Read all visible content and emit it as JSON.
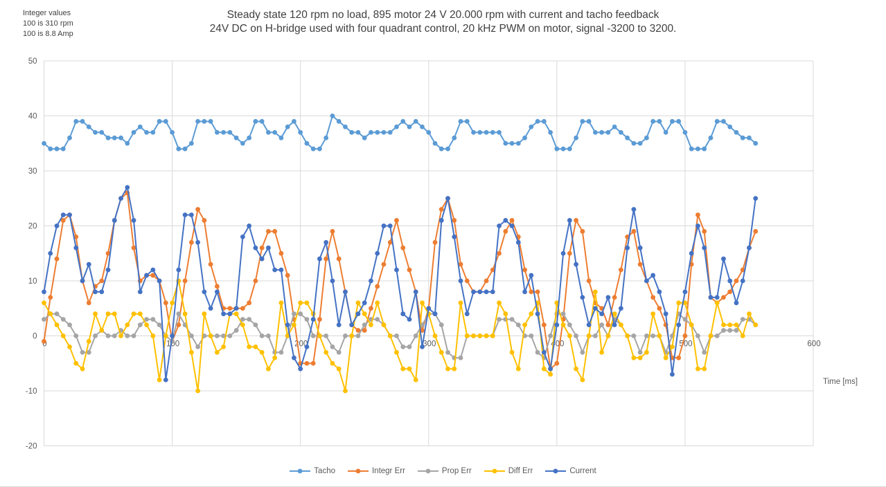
{
  "annotation": {
    "line1": "Integer values",
    "line2": "100 is 310 rpm",
    "line3": "100 is 8.8 Amp"
  },
  "title": {
    "line1": "Steady state 120 rpm no load, 895 motor 24 V 20.000 rpm with current and tacho feedback",
    "line2": "24V DC on H-bridge used with four quadrant control, 20 kHz PWM on motor, signal -3200 to 3200."
  },
  "chart_data": {
    "type": "line",
    "xlabel": "Time [ms]",
    "ylabel": "",
    "xlim": [
      0,
      600
    ],
    "ylim": [
      -20,
      50
    ],
    "x_ticks": [
      0,
      100,
      200,
      300,
      400,
      500,
      600
    ],
    "y_ticks": [
      -20,
      -10,
      0,
      10,
      20,
      30,
      40,
      50
    ],
    "grid": true,
    "legend_position": "bottom",
    "marker": "circle",
    "x_start": 0,
    "x_step": 5,
    "series": [
      {
        "name": "Tacho",
        "color": "#5B9BD5",
        "values": [
          35,
          34,
          34,
          34,
          36,
          39,
          39,
          38,
          37,
          37,
          36,
          36,
          36,
          35,
          37,
          38,
          37,
          37,
          39,
          39,
          37,
          34,
          34,
          35,
          39,
          39,
          39,
          37,
          37,
          37,
          36,
          35,
          36,
          39,
          39,
          37,
          37,
          36,
          38,
          39,
          37,
          35,
          34,
          34,
          36,
          40,
          39,
          38,
          37,
          37,
          36,
          37,
          37,
          37,
          37,
          38,
          39,
          38,
          39,
          38,
          37,
          35,
          34,
          34,
          36,
          39,
          39,
          37,
          37,
          37,
          37,
          37,
          35,
          35,
          35,
          36,
          38,
          39,
          39,
          37,
          34,
          34,
          34,
          36,
          39,
          39,
          37,
          37,
          37,
          38,
          37,
          36,
          35,
          35,
          36,
          39,
          39,
          37,
          39,
          39,
          37,
          34,
          34,
          34,
          36,
          39,
          39,
          38,
          37,
          36,
          36,
          35
        ]
      },
      {
        "name": "Integr Err",
        "color": "#ED7D31",
        "values": [
          -1,
          7,
          14,
          21,
          22,
          18,
          10,
          6,
          9,
          10,
          15,
          21,
          25,
          26,
          16,
          10,
          11,
          11,
          10,
          6,
          -1,
          2,
          10,
          17,
          23,
          21,
          13,
          9,
          5,
          5,
          5,
          5,
          6,
          10,
          16,
          19,
          19,
          15,
          11,
          3,
          -5,
          -5,
          -5,
          3,
          14,
          19,
          14,
          8,
          2,
          1,
          1,
          5,
          9,
          13,
          17,
          21,
          16,
          12,
          8,
          1,
          5,
          17,
          23,
          25,
          21,
          13,
          10,
          8,
          8,
          10,
          12,
          15,
          19,
          21,
          18,
          12,
          8,
          8,
          2,
          -6,
          -5,
          3,
          15,
          21,
          19,
          10,
          6,
          5,
          2,
          7,
          12,
          18,
          19,
          13,
          10,
          7,
          5,
          2,
          -4,
          -4,
          0,
          13,
          22,
          19,
          7,
          6,
          7,
          8,
          10,
          12,
          16,
          19
        ]
      },
      {
        "name": "Prop Err",
        "color": "#A5A5A5",
        "values": [
          3,
          4,
          4,
          3,
          2,
          0,
          -3,
          -3,
          0,
          1,
          0,
          0,
          1,
          0,
          0,
          2,
          3,
          3,
          2,
          0,
          -1,
          4,
          2,
          0,
          -2,
          0,
          0,
          0,
          0,
          0,
          1,
          3,
          3,
          2,
          0,
          0,
          -3,
          -3,
          0,
          4,
          4,
          3,
          0,
          0,
          0,
          -2,
          -3,
          0,
          0,
          0,
          2,
          3,
          3,
          2,
          0,
          0,
          -2,
          -2,
          0,
          2,
          4,
          4,
          2,
          -3,
          -4,
          -4,
          0,
          0,
          0,
          0,
          0,
          3,
          3,
          3,
          2,
          0,
          0,
          -3,
          -4,
          0,
          4,
          4,
          2,
          0,
          -3,
          0,
          0,
          2,
          0,
          3,
          2,
          0,
          0,
          -3,
          0,
          0,
          0,
          -3,
          0,
          4,
          3,
          2,
          0,
          -3,
          0,
          0,
          1,
          1,
          1,
          3,
          3,
          2
        ]
      },
      {
        "name": "Diff Err",
        "color": "#FFC000",
        "values": [
          6,
          4,
          2,
          0,
          -2,
          -5,
          -6,
          -1,
          4,
          1,
          4,
          4,
          0,
          2,
          4,
          4,
          2,
          0,
          -8,
          0,
          6,
          10,
          4,
          -3,
          -10,
          4,
          0,
          -3,
          -2,
          4,
          4,
          2,
          -2,
          -2,
          -3,
          -6,
          -4,
          6,
          0,
          2,
          6,
          6,
          4,
          0,
          -3,
          -5,
          -6,
          -10,
          0,
          6,
          4,
          2,
          6,
          2,
          0,
          -3,
          -6,
          -6,
          -8,
          6,
          4,
          0,
          -3,
          -6,
          -6,
          6,
          0,
          0,
          0,
          0,
          0,
          6,
          4,
          -3,
          -6,
          2,
          4,
          6,
          -6,
          -7,
          6,
          2,
          0,
          -6,
          -8,
          0,
          8,
          -3,
          0,
          4,
          2,
          0,
          -4,
          -4,
          -3,
          4,
          0,
          -4,
          -2,
          6,
          6,
          2,
          -6,
          -6,
          0,
          6,
          2,
          2,
          2,
          0,
          4,
          2
        ]
      },
      {
        "name": "Current",
        "color": "#4472C4",
        "values": [
          8,
          15,
          20,
          22,
          22,
          16,
          10,
          13,
          8,
          8,
          12,
          21,
          25,
          27,
          21,
          8,
          11,
          12,
          10,
          -8,
          0,
          12,
          22,
          22,
          17,
          8,
          5,
          8,
          4,
          4,
          5,
          18,
          20,
          16,
          14,
          16,
          12,
          12,
          2,
          -4,
          -6,
          -2,
          3,
          14,
          17,
          10,
          2,
          8,
          2,
          4,
          6,
          10,
          15,
          20,
          20,
          12,
          4,
          3,
          8,
          -2,
          5,
          4,
          21,
          25,
          18,
          10,
          4,
          8,
          8,
          8,
          8,
          20,
          21,
          20,
          17,
          8,
          11,
          4,
          -3,
          -6,
          2,
          15,
          21,
          13,
          7,
          2,
          5,
          4,
          7,
          2,
          5,
          16,
          23,
          16,
          10,
          11,
          8,
          4,
          -7,
          2,
          8,
          15,
          20,
          16,
          7,
          7,
          14,
          10,
          6,
          10,
          16,
          25
        ]
      }
    ]
  },
  "colors": {
    "grid": "#D9D9D9",
    "axis_text": "#595959",
    "title_text": "#3F3F3F"
  }
}
